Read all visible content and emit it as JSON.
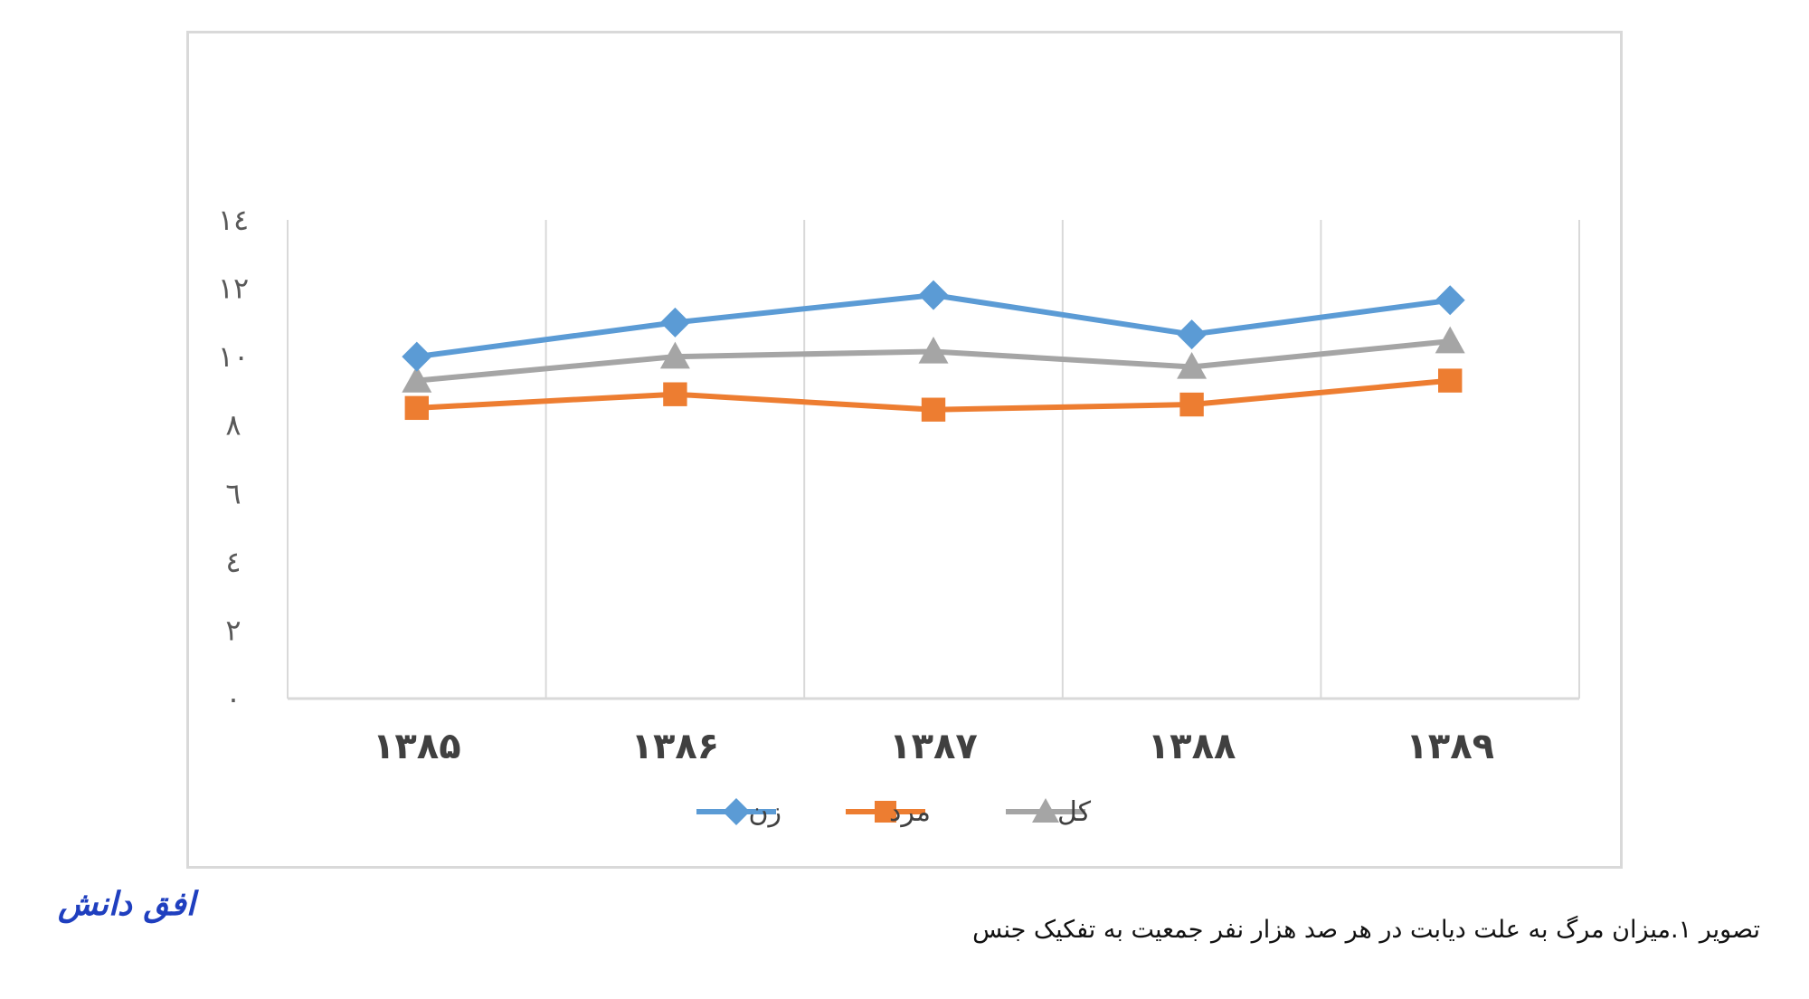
{
  "chart_data": {
    "type": "line",
    "categories": [
      "۱۳۸۵",
      "۱۳۸۶",
      "۱۳۸۷",
      "۱۳۸۸",
      "۱۳۸۹"
    ],
    "series": [
      {
        "name": "زن",
        "values": [
          10.0,
          11.0,
          11.8,
          10.65,
          11.65
        ],
        "color": "#5b9bd5",
        "marker": "diamond"
      },
      {
        "name": "مرد",
        "values": [
          8.5,
          8.9,
          8.45,
          8.6,
          9.3
        ],
        "color": "#ed7d31",
        "marker": "square"
      },
      {
        "name": "کل",
        "values": [
          9.3,
          10.0,
          10.15,
          9.7,
          10.45
        ],
        "color": "#a5a5a5",
        "marker": "triangle"
      }
    ],
    "ylim": [
      0,
      14
    ],
    "yticks": [
      0,
      2,
      4,
      6,
      8,
      10,
      12,
      14
    ],
    "ytick_labels": [
      "۰",
      "۲",
      "٤",
      "٦",
      "٨",
      "١٠",
      "١٢",
      "١٤"
    ],
    "grid": "vertical",
    "legend_position": "bottom"
  },
  "caption": "تصویر ۱.میزان مرگ به علت دیابت در هر صد هزار نفر جمعیت به تفکیک جنس",
  "logo_text": "افق دانش"
}
